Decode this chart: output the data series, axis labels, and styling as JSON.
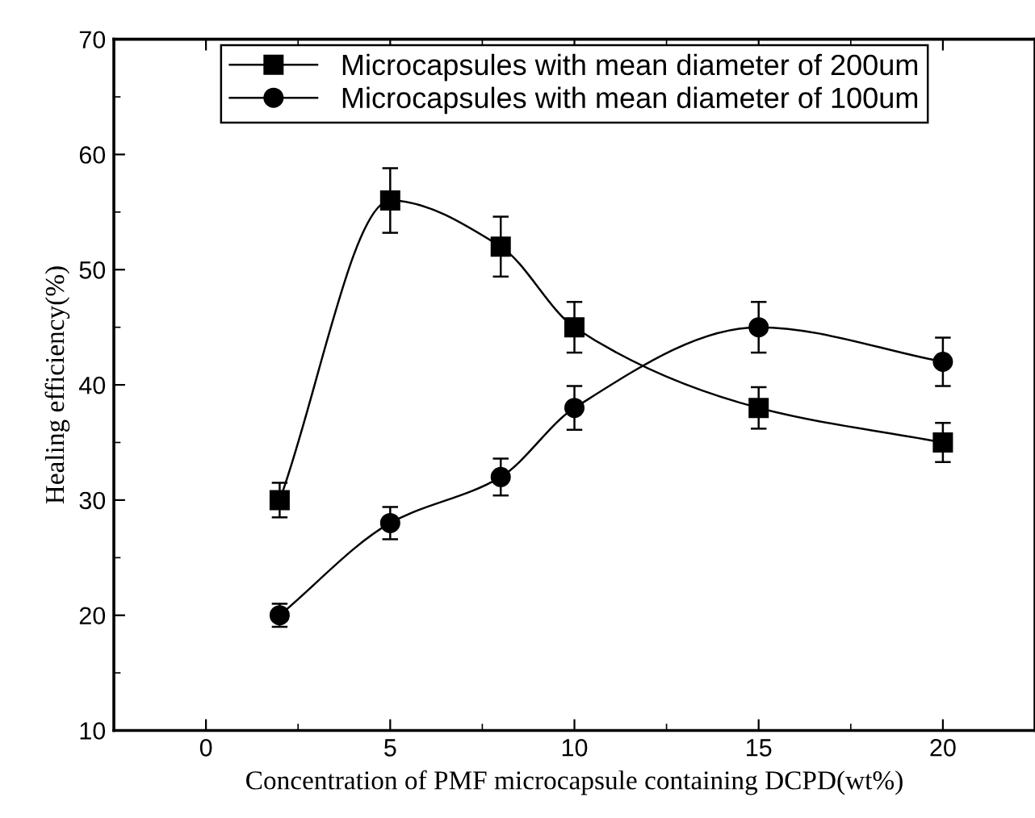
{
  "chart_data": {
    "type": "line",
    "xlabel": "Concentration of PMF microcapsule containing DCPD(wt%)",
    "ylabel": "Healing efficiency(%)",
    "x": [
      2,
      5,
      8,
      10,
      15,
      20
    ],
    "series": [
      {
        "name": "Microcapsules with mean diameter of 200um",
        "color": "#000000",
        "marker": "square",
        "values": [
          30,
          56,
          52,
          45,
          38,
          35
        ],
        "errors": [
          1.5,
          2.8,
          2.6,
          2.2,
          1.8,
          1.7
        ]
      },
      {
        "name": "Microcapsules with mean diameter of 100um",
        "color": "#000000",
        "marker": "circle",
        "values": [
          20,
          28,
          32,
          38,
          45,
          42
        ],
        "errors": [
          1.0,
          1.4,
          1.6,
          1.9,
          2.2,
          2.1
        ]
      }
    ],
    "xlim": [
      -2.5,
      22.5
    ],
    "xticks": [
      0,
      5,
      10,
      15,
      20
    ],
    "ylim": [
      10,
      70
    ],
    "yticks": [
      10,
      20,
      30,
      40,
      50,
      60,
      70
    ],
    "grid": false,
    "legend": "top",
    "line_style": "solid"
  }
}
